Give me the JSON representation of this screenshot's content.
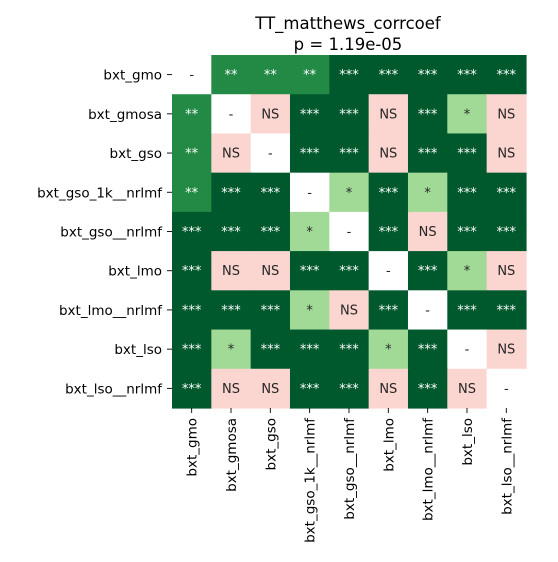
{
  "chart_data": {
    "type": "heatmap",
    "title": "TT_matthews_corrcoef",
    "subtitle": "p = 1.19e-05",
    "rows": [
      "bxt_gmo",
      "bxt_gmosa",
      "bxt_gso",
      "bxt_gso_1k__nrlmf",
      "bxt_gso__nrlmf",
      "bxt_lmo",
      "bxt_lmo__nrlmf",
      "bxt_lso",
      "bxt_lso__nrlmf"
    ],
    "cols": [
      "bxt_gmo",
      "bxt_gmosa",
      "bxt_gso",
      "bxt_gso_1k__nrlmf",
      "bxt_gso__nrlmf",
      "bxt_lmo",
      "bxt_lmo__nrlmf",
      "bxt_lso",
      "bxt_lso__nrlmf"
    ],
    "cells": [
      [
        "-",
        "**",
        "**",
        "**",
        "***",
        "***",
        "***",
        "***",
        "***"
      ],
      [
        "**",
        "-",
        "NS",
        "***",
        "***",
        "NS",
        "***",
        "*",
        "NS"
      ],
      [
        "**",
        "NS",
        "-",
        "***",
        "***",
        "NS",
        "***",
        "***",
        "NS"
      ],
      [
        "**",
        "***",
        "***",
        "-",
        "*",
        "***",
        "*",
        "***",
        "***"
      ],
      [
        "***",
        "***",
        "***",
        "*",
        "-",
        "***",
        "NS",
        "***",
        "***"
      ],
      [
        "***",
        "NS",
        "NS",
        "***",
        "***",
        "-",
        "***",
        "*",
        "NS"
      ],
      [
        "***",
        "***",
        "***",
        "*",
        "NS",
        "***",
        "-",
        "***",
        "***"
      ],
      [
        "***",
        "*",
        "***",
        "***",
        "***",
        "*",
        "***",
        "-",
        "NS"
      ],
      [
        "***",
        "NS",
        "NS",
        "***",
        "***",
        "NS",
        "***",
        "NS",
        "-"
      ]
    ],
    "colors": {
      "***": "#00592d",
      "**": "#238a45",
      "*": "#a1da96",
      "NS": "#fbd5cf",
      "-": "#ffffff"
    },
    "text_colors": {
      "***": "#ffffff",
      "**": "#ffffff",
      "*": "#262626",
      "NS": "#262626",
      "-": "#262626"
    }
  }
}
